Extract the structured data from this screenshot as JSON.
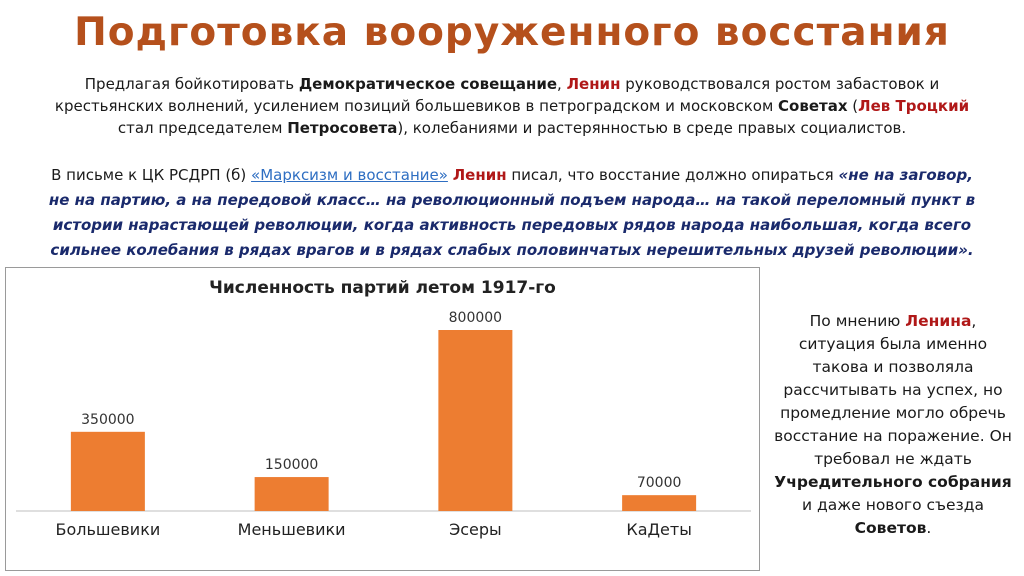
{
  "title": "Подготовка вооруженного восстания",
  "para1": {
    "l1_a": "Предлагая бойкотировать ",
    "l1_b": "Демократическое совещание",
    "l1_c": ", ",
    "l1_d": "Ленин",
    "l1_e": " руководствовался ростом забастовок и",
    "l2_a": "крестьянских волнений, усилением позиций большевиков в петроградском и московском ",
    "l2_b": "Советах",
    "l2_c": " (",
    "l2_d": "Лев Троцкий",
    "l3_a": "стал председателем ",
    "l3_b": "Петросовета",
    "l3_c": "), колебаниями и растерянностью в среде правых социалистов."
  },
  "para2": {
    "l1_a": "В письме к ЦК РСДРП (б) ",
    "l1_link": "«Марксизм и восстание»",
    "l1_b": " ",
    "l1_c": "Ленин",
    "l1_d": " писал, что восстание должно опираться ",
    "l1_q": "«не на заговор,",
    "l2": "не на партию, а на передовой класс… на революционный подъем народа… на такой переломный пункт в",
    "l3": "истории нарастающей революции, когда активность передовых рядов народа наибольшая, когда всего",
    "l4": "сильнее колебания в рядах врагов и в рядах слабых половинчатых нерешительных друзей революции»."
  },
  "side": {
    "l1_a": "По мнению ",
    "l1_b": "Ленина",
    "l1_c": ",",
    "l2": "ситуация была именно",
    "l3": "такова и позволяла",
    "l4": "рассчитывать на успех, но",
    "l5": "промедление могло обречь",
    "l6": "восстание на поражение. Он",
    "l7": "требовал не ждать",
    "l8": "Учредительного собрания",
    "l9": "и даже нового съезда",
    "l10_a": "Советов",
    "l10_b": "."
  },
  "chart_data": {
    "type": "bar",
    "title": "Численность партий летом 1917-го",
    "categories": [
      "Большевики",
      "Меньшевики",
      "Эсеры",
      "КаДеты"
    ],
    "values": [
      350000,
      150000,
      800000,
      70000
    ],
    "data_labels": [
      "350000",
      "150000",
      "800000",
      "70000"
    ],
    "ylim": [
      0,
      800000
    ],
    "grid": false,
    "legend": "none",
    "bar_color": "#ed7d31"
  },
  "colors": {
    "title": "#b5501c",
    "highlight_red": "#b01818",
    "link": "#2e6ec2",
    "quote": "#1a2a6c"
  }
}
